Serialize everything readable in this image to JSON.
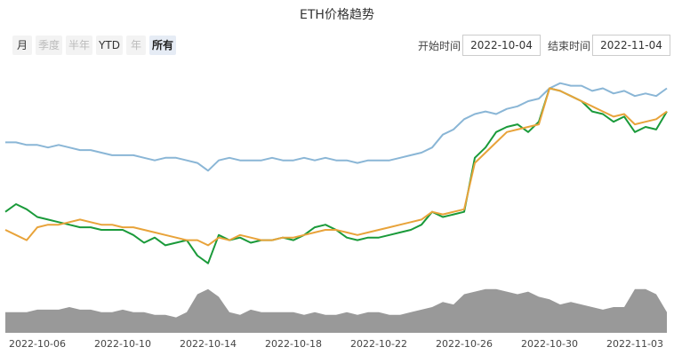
{
  "controls": {
    "ranges": [
      "月",
      "季度",
      "半年",
      "YTD",
      "年",
      "所有"
    ],
    "selected": "所有",
    "start_label": "开始时间",
    "start": "2022-10-04",
    "end_label": "结束时间",
    "end": "2022-11-04"
  },
  "chart_data": {
    "type": "line",
    "title": "ETH价格趋势",
    "categories": [
      null,
      null,
      null,
      "2022-10-06",
      null,
      null,
      null,
      null,
      null,
      null,
      null,
      "2022-10-10",
      null,
      null,
      null,
      null,
      null,
      null,
      null,
      "2022-10-14",
      null,
      null,
      null,
      null,
      null,
      null,
      null,
      "2022-10-18",
      null,
      null,
      null,
      null,
      null,
      null,
      null,
      "2022-10-22",
      null,
      null,
      null,
      null,
      null,
      null,
      null,
      "2022-10-26",
      null,
      null,
      null,
      null,
      null,
      null,
      null,
      "2022-10-30",
      null,
      null,
      null,
      null,
      null,
      null,
      null,
      "2022-11-03",
      null,
      null,
      null
    ],
    "ylim": [
      0,
      100
    ],
    "series": [
      {
        "type": "line",
        "color": "#8ab6d6",
        "values": [
          74,
          74,
          73,
          73,
          72,
          73,
          72,
          71,
          71,
          70,
          69,
          69,
          69,
          68,
          67,
          68,
          68,
          67,
          66,
          63,
          67,
          68,
          67,
          67,
          67,
          68,
          67,
          67,
          68,
          67,
          68,
          67,
          67,
          66,
          67,
          67,
          67,
          68,
          69,
          70,
          72,
          77,
          79,
          83,
          85,
          86,
          85,
          87,
          88,
          90,
          91,
          95,
          97,
          96,
          96,
          94,
          95,
          93,
          94,
          92,
          93,
          92,
          95
        ]
      },
      {
        "type": "line",
        "color": "#1a9a3a",
        "values": [
          47,
          50,
          48,
          45,
          44,
          43,
          42,
          41,
          41,
          40,
          40,
          40,
          38,
          35,
          37,
          34,
          35,
          36,
          30,
          27,
          38,
          36,
          37,
          35,
          36,
          36,
          37,
          36,
          38,
          41,
          42,
          40,
          37,
          36,
          37,
          37,
          38,
          39,
          40,
          42,
          47,
          45,
          46,
          47,
          68,
          72,
          78,
          80,
          81,
          78,
          82,
          95,
          94,
          92,
          90,
          86,
          85,
          82,
          84,
          78,
          80,
          79,
          86
        ]
      },
      {
        "type": "line",
        "color": "#e8a33a",
        "values": [
          40,
          38,
          36,
          41,
          42,
          42,
          43,
          44,
          43,
          42,
          42,
          41,
          41,
          40,
          39,
          38,
          37,
          36,
          36,
          34,
          37,
          36,
          38,
          37,
          36,
          36,
          37,
          37,
          38,
          39,
          40,
          40,
          39,
          38,
          39,
          40,
          41,
          42,
          43,
          44,
          47,
          46,
          47,
          48,
          66,
          70,
          74,
          78,
          79,
          80,
          81,
          95,
          94,
          92,
          90,
          88,
          86,
          84,
          85,
          81,
          82,
          83,
          86
        ]
      },
      {
        "type": "area",
        "color": "#999999",
        "values": [
          8,
          8,
          8,
          9,
          9,
          9,
          10,
          9,
          9,
          8,
          8,
          9,
          8,
          8,
          7,
          7,
          6,
          8,
          15,
          17,
          14,
          8,
          7,
          9,
          8,
          8,
          8,
          8,
          7,
          8,
          7,
          7,
          8,
          7,
          8,
          8,
          7,
          7,
          8,
          9,
          10,
          12,
          11,
          15,
          16,
          17,
          17,
          16,
          15,
          16,
          14,
          13,
          11,
          12,
          11,
          10,
          9,
          10,
          10,
          17,
          17,
          15,
          8
        ]
      }
    ]
  }
}
